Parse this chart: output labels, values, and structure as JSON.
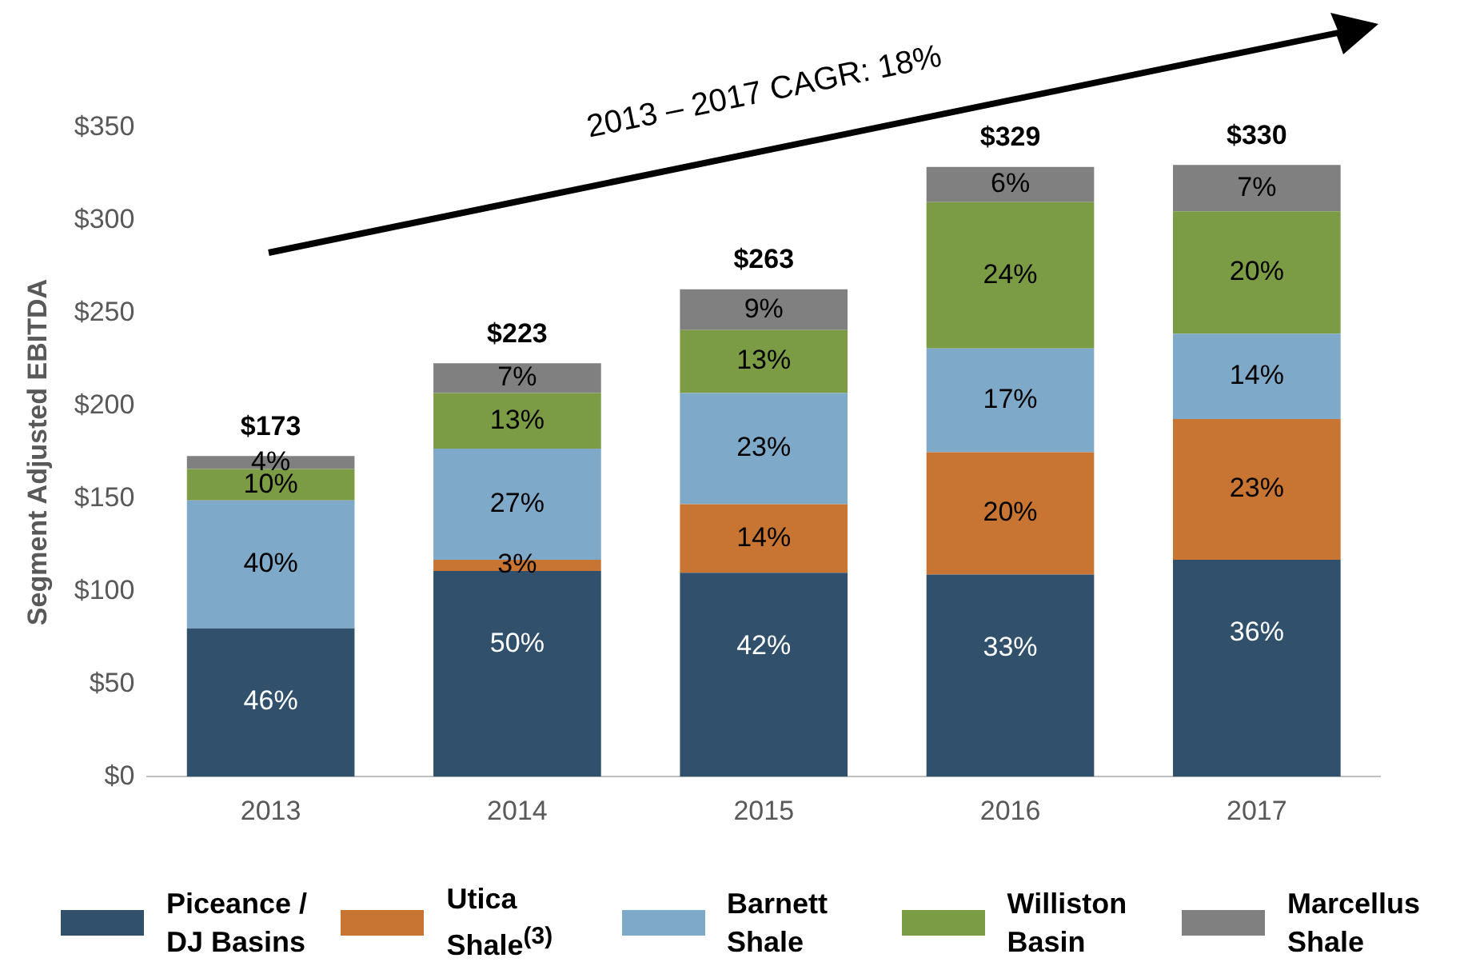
{
  "chart_data": {
    "type": "bar",
    "stacked": true,
    "ylabel": "Segment Adjusted EBITDA",
    "categories": [
      "2013",
      "2014",
      "2015",
      "2016",
      "2017"
    ],
    "ylim": [
      0,
      350
    ],
    "yticks": [
      {
        "value": 0,
        "label": "$0"
      },
      {
        "value": 50,
        "label": "$50"
      },
      {
        "value": 100,
        "label": "$100"
      },
      {
        "value": 150,
        "label": "$150"
      },
      {
        "value": 200,
        "label": "$200"
      },
      {
        "value": 250,
        "label": "$250"
      },
      {
        "value": 300,
        "label": "$300"
      },
      {
        "value": 350,
        "label": "$350"
      }
    ],
    "grid": false,
    "legend": "bottom",
    "series": [
      {
        "name": "Piceance / DJ Basins",
        "color": "#30506c",
        "values": [
          80,
          111,
          110,
          109,
          117
        ]
      },
      {
        "name": "Utica Shale$^{(3)}$",
        "color": "#c87533",
        "values": [
          null,
          6,
          37,
          66,
          76
        ]
      },
      {
        "name": "Barnett Shale",
        "color": "#7fa9c8",
        "values": [
          69,
          60,
          60,
          56,
          46
        ]
      },
      {
        "name": "Williston Basin",
        "color": "#7b9b45",
        "values": [
          17,
          30,
          34,
          79,
          66
        ]
      },
      {
        "name": "Marcellus Shale",
        "color": "#808080",
        "values": [
          7,
          16,
          22,
          19,
          25
        ]
      }
    ],
    "totals": [
      "$173",
      "$223",
      "$263",
      "$329",
      "$330"
    ],
    "annotations": [
      "2013 – 2017 CAGR: 18%",
      {
        "text": "46%",
        "x": "2013",
        "y": 80
      },
      {
        "text": "40%",
        "x": "2013",
        "y": 149
      },
      {
        "text": "10%",
        "x": "2013",
        "y": 166
      },
      {
        "text": "4%",
        "x": "2013",
        "y": 173
      },
      {
        "text": "50%",
        "x": "2014",
        "y": 111
      },
      {
        "text": "3%",
        "x": "2014",
        "y": 117
      },
      {
        "text": "27%",
        "x": "2014",
        "y": 177
      },
      {
        "text": "13%",
        "x": "2014",
        "y": 207
      },
      {
        "text": "7%",
        "x": "2014",
        "y": 223
      },
      {
        "text": "42%",
        "x": "2015",
        "y": 110
      },
      {
        "text": "14%",
        "x": "2015",
        "y": 147
      },
      {
        "text": "23%",
        "x": "2015",
        "y": 207
      },
      {
        "text": "13%",
        "x": "2015",
        "y": 241
      },
      {
        "text": "9%",
        "x": "2015",
        "y": 263
      },
      {
        "text": "33%",
        "x": "2016",
        "y": 109
      },
      {
        "text": "20%",
        "x": "2016",
        "y": 175
      },
      {
        "text": "17%",
        "x": "2016",
        "y": 231
      },
      {
        "text": "24%",
        "x": "2016",
        "y": 310
      },
      {
        "text": "6%",
        "x": "2016",
        "y": 329
      },
      {
        "text": "36%",
        "x": "2017",
        "y": 117
      },
      {
        "text": "23%",
        "x": "2017",
        "y": 193
      },
      {
        "text": "14%",
        "x": "2017",
        "y": 239
      },
      {
        "text": "20%",
        "x": "2017",
        "y": 305
      },
      {
        "text": "7%",
        "x": "2017",
        "y": 330
      }
    ]
  }
}
